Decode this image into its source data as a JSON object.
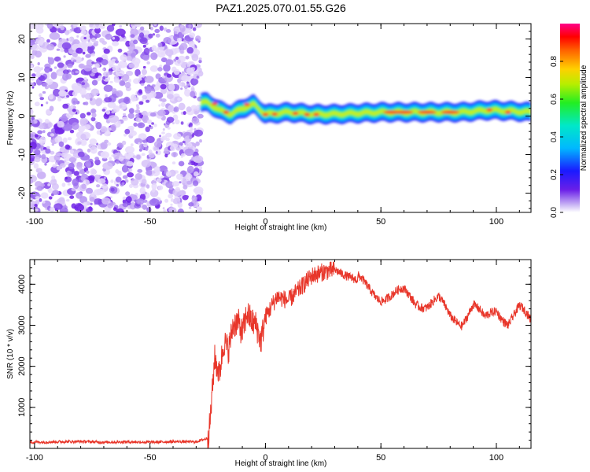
{
  "figure_title": "PAZ1.2025.070.01.55.G26",
  "colors": {
    "snr_line": "#e8362a",
    "speckle": "#7b2fe6",
    "frame": "#000000"
  },
  "chart_data": [
    {
      "type": "heatmap",
      "title": "PAZ1.2025.070.01.55.G26",
      "xlabel": "Height of straight line (km)",
      "ylabel": "Frequency (Hz)",
      "xlim": [
        -102,
        115
      ],
      "ylim": [
        -25,
        24
      ],
      "xticks": [
        -100,
        -50,
        0,
        50,
        100
      ],
      "yticks": [
        -20,
        -10,
        0,
        10,
        20
      ],
      "noise_region_x": [
        -102,
        -28
      ],
      "ridge": {
        "description_points_x": [
          -28,
          -25,
          -20,
          -15,
          -10,
          -5,
          0,
          10,
          20,
          30,
          50,
          70,
          85,
          95,
          100,
          115
        ],
        "description_points_freq": [
          3.5,
          3.5,
          1.5,
          0.5,
          2.0,
          3.0,
          0.5,
          1.0,
          0.5,
          0.5,
          1.0,
          1.0,
          1.0,
          1.5,
          1.5,
          1.0
        ]
      },
      "colorbar": {
        "label": "Normalized spectral amplitude",
        "range": [
          0,
          1
        ],
        "ticks": [
          "0.0",
          "0.2",
          "0.4",
          "0.6",
          "0.8"
        ],
        "tick_values": [
          0.0,
          0.2,
          0.4,
          0.6,
          0.8
        ]
      }
    },
    {
      "type": "line",
      "xlabel": "Height of straight line (km)",
      "ylabel": "SNR (10 * v/v)",
      "xlim": [
        -102,
        115
      ],
      "ylim": [
        0,
        4600
      ],
      "xticks": [
        -100,
        -50,
        0,
        50,
        100
      ],
      "yticks": [
        1000,
        2000,
        3000,
        4000
      ],
      "series": [
        {
          "name": "SNR",
          "x": [
            -102,
            -90,
            -80,
            -70,
            -60,
            -50,
            -40,
            -30,
            -25,
            -24,
            -22,
            -20,
            -18,
            -16,
            -14,
            -12,
            -10,
            -8,
            -6,
            -4,
            -2,
            0,
            5,
            10,
            15,
            20,
            25,
            30,
            35,
            40,
            45,
            50,
            55,
            60,
            65,
            70,
            75,
            80,
            85,
            90,
            95,
            100,
            105,
            110,
            115
          ],
          "values": [
            150,
            160,
            170,
            150,
            160,
            150,
            165,
            160,
            250,
            600,
            2200,
            1800,
            2600,
            2400,
            3000,
            3100,
            2800,
            3300,
            3100,
            3000,
            2600,
            3200,
            3700,
            3600,
            3900,
            4200,
            4300,
            4350,
            4200,
            4100,
            3900,
            3700,
            3700,
            3800,
            3600,
            3500,
            3600,
            3200,
            3100,
            3500,
            3100,
            3400,
            3100,
            3400,
            3050
          ]
        }
      ]
    }
  ]
}
